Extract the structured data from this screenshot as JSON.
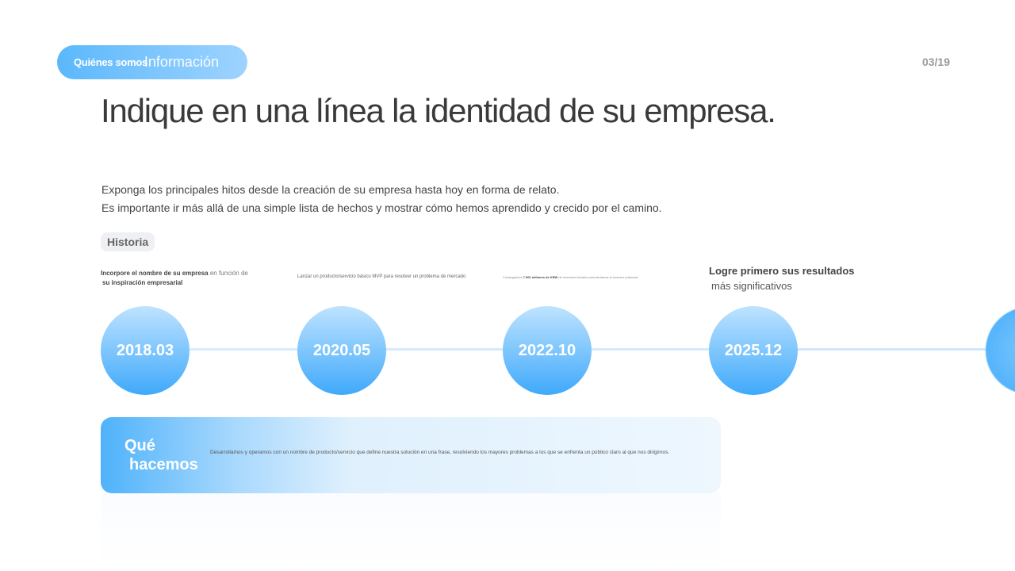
{
  "header": {
    "section_label": "Quiénes somos",
    "section_sub": "Información",
    "page_number": "03/19"
  },
  "title": "Indique en una línea la identidad de su empresa.",
  "description": [
    "Exponga los principales hitos desde la creación de su empresa hasta hoy en forma de relato.",
    "Es importante ir más allá de una simple lista de hechos y mostrar cómo hemos aprendido y crecido por el camino."
  ],
  "tag": "Historia",
  "timeline": [
    {
      "date": "2018.03",
      "bold": "Incorpore el nombre de su empresa",
      "text": " en función de",
      "bold2": "su inspiración empresarial"
    },
    {
      "date": "2020.05",
      "text": "Lanzar un producto/servicio básico MVP para resolver un problema de mercado"
    },
    {
      "date": "2022.10",
      "pre": "Conseguimos ",
      "bold": "7.000 millones de KRW",
      "text": " de inversión iniciales acercándonos al inversor potencial"
    },
    {
      "date": "2025.12",
      "bold": "Logre primero sus resultados",
      "text": "más significativos"
    }
  ],
  "what_we_do": {
    "title1": "Qué",
    "title2": "hacemos",
    "text": "Desarrollamos y operamos con un nombre de producto/servicio que define nuestra solución en una frase, resolviendo los mayores problemas a los que se enfrenta un público claro al que nos dirigimos."
  }
}
